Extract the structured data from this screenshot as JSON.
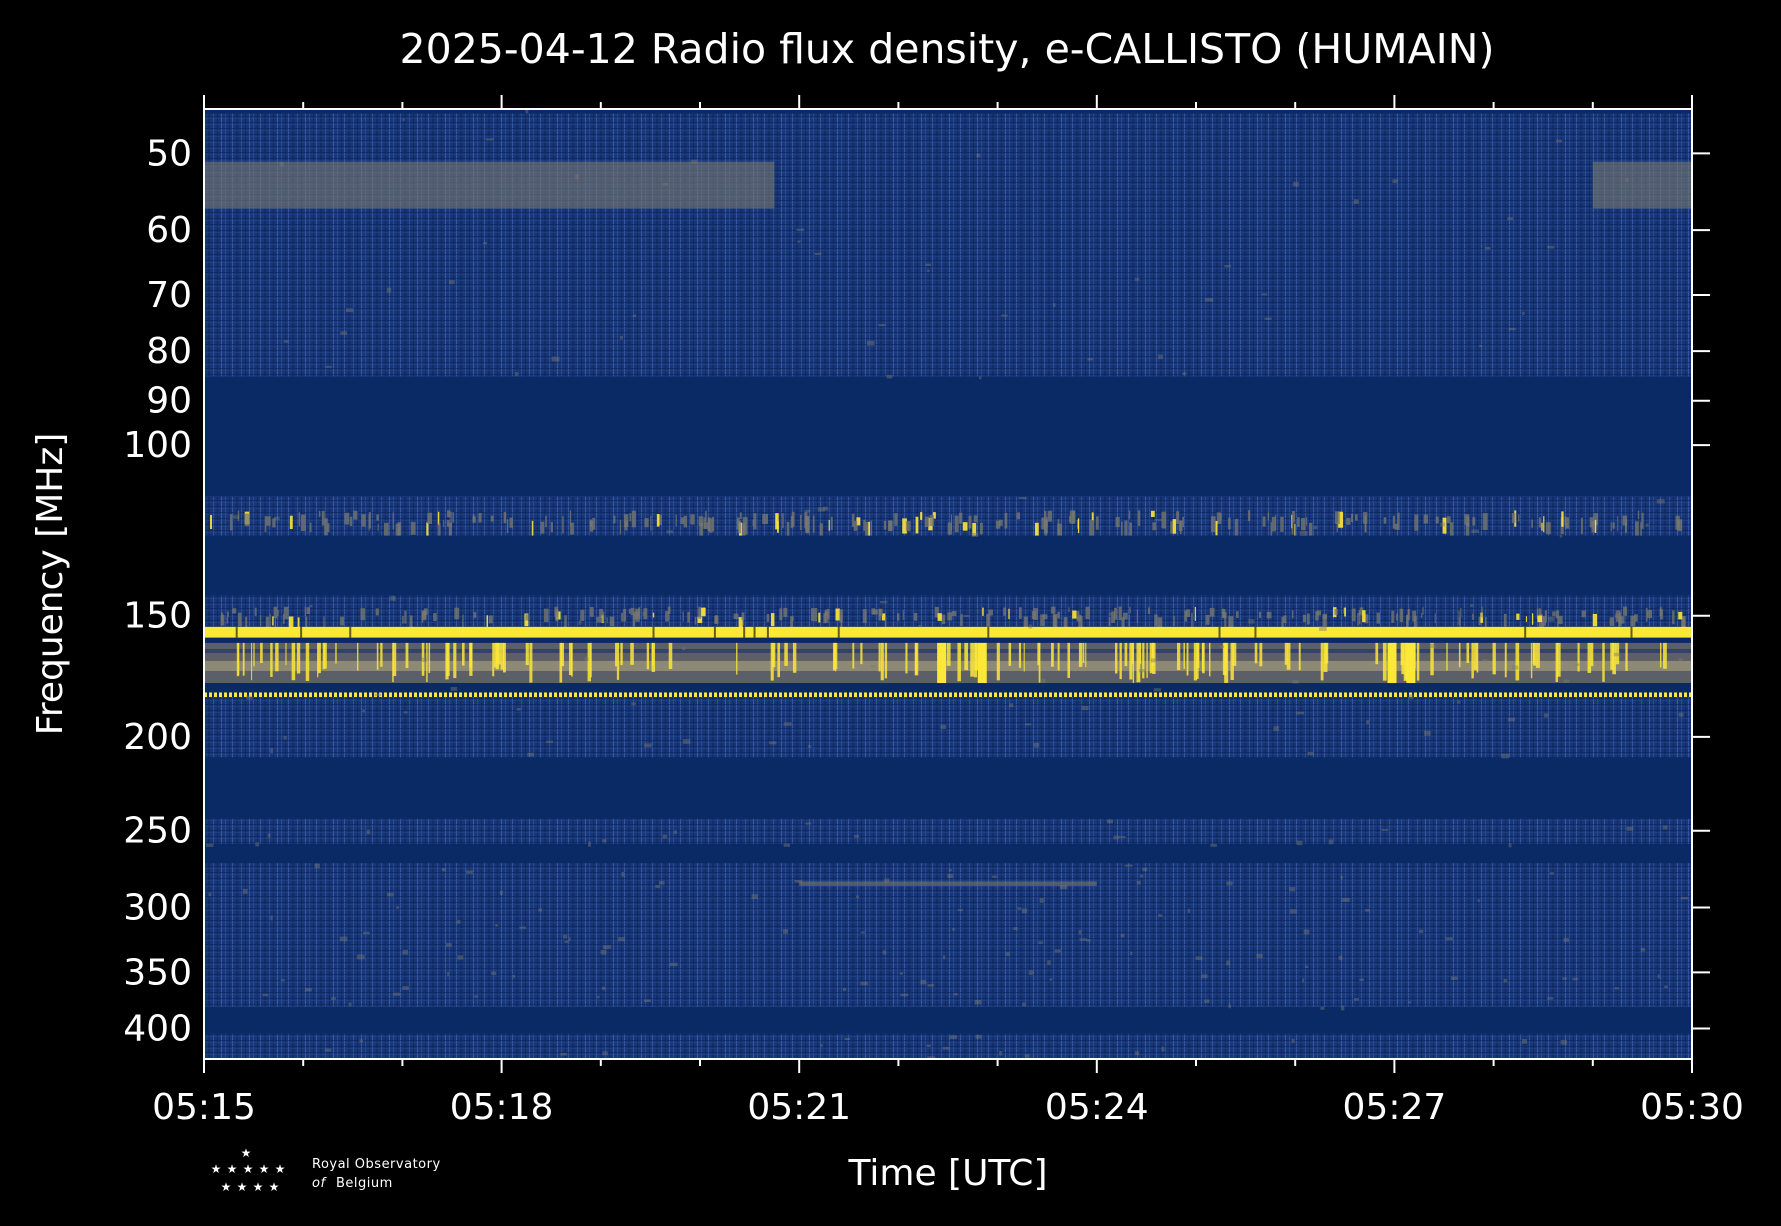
{
  "chart_data": {
    "type": "heatmap",
    "title": "2025-04-12 Radio flux density, e-CALLISTO (HUMAIN)",
    "xlabel": "Time [UTC]",
    "ylabel": "Frequency [MHz]",
    "x_range": [
      "05:15",
      "05:30"
    ],
    "x_ticks": [
      "05:15",
      "05:18",
      "05:21",
      "05:24",
      "05:27",
      "05:30"
    ],
    "y_scale": "log",
    "y_range": [
      45,
      430
    ],
    "y_ticks": [
      50,
      60,
      70,
      80,
      90,
      100,
      150,
      200,
      250,
      300,
      350,
      400
    ],
    "y_tick_labels": [
      "50",
      "60",
      "70",
      "80",
      "90",
      "100",
      "150",
      "200",
      "250",
      "300",
      "350",
      "400"
    ],
    "colormap": "cividis",
    "colors": {
      "background": "#000000",
      "baseline": "#0a2a66",
      "noise": "#1f3f85",
      "gray": "#7a7a70",
      "bright": "#fde737"
    },
    "bands": [
      {
        "f_from": 45.5,
        "f_to": 85,
        "level": "background-noise"
      },
      {
        "f_from": 51,
        "f_to": 57,
        "level": "gray",
        "time_from": "05:15",
        "time_to": "05:20:45"
      },
      {
        "f_from": 51,
        "f_to": 57,
        "level": "gray",
        "time_from": "05:29:00",
        "time_to": "05:30"
      },
      {
        "f_from": 85,
        "f_to": 113,
        "level": "flat"
      },
      {
        "f_from": 113,
        "f_to": 124,
        "level": "noise-with-spikes"
      },
      {
        "f_from": 124,
        "f_to": 143,
        "level": "flat"
      },
      {
        "f_from": 143,
        "f_to": 154,
        "level": "noise-with-spikes"
      },
      {
        "f_from": 154,
        "f_to": 158,
        "level": "bright"
      },
      {
        "f_from": 160,
        "f_to": 176,
        "level": "gray-with-bright-bursts"
      },
      {
        "f_from": 180,
        "f_to": 182,
        "level": "bright-dotted"
      },
      {
        "f_from": 182,
        "f_to": 210,
        "level": "background-noise"
      },
      {
        "f_from": 210,
        "f_to": 243,
        "level": "flat"
      },
      {
        "f_from": 243,
        "f_to": 258,
        "level": "background-noise"
      },
      {
        "f_from": 258,
        "f_to": 270,
        "level": "flat"
      },
      {
        "f_from": 270,
        "f_to": 380,
        "level": "background-noise"
      },
      {
        "f_from": 282,
        "f_to": 285,
        "level": "gray",
        "time_from": "05:21:00",
        "time_to": "05:24:00"
      },
      {
        "f_from": 380,
        "f_to": 405,
        "level": "flat"
      },
      {
        "f_from": 405,
        "f_to": 430,
        "level": "background-noise"
      }
    ]
  },
  "logo": {
    "line1": "Royal Observatory",
    "line2_prefix": "of",
    "line2": "Belgium"
  }
}
